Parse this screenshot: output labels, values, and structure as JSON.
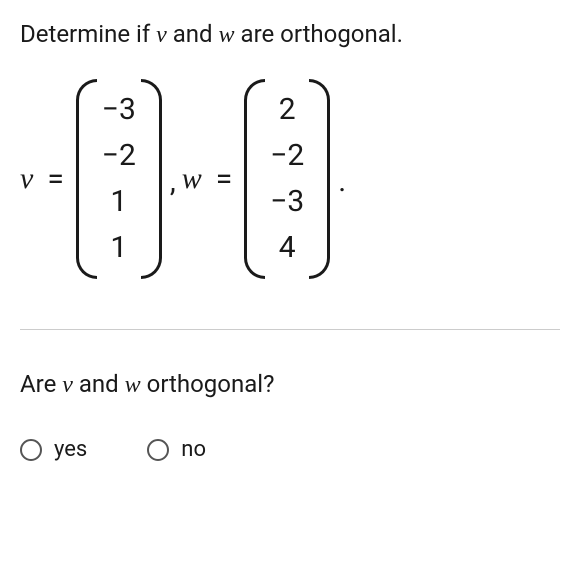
{
  "instruction": {
    "prefix": "Determine if ",
    "var1": "v",
    "mid": " and ",
    "var2": "w",
    "suffix": " are orthogonal."
  },
  "vectors": {
    "v": {
      "label": "v",
      "entries": [
        "−3",
        "−2",
        "1",
        "1"
      ]
    },
    "w": {
      "label": "w",
      "entries": [
        "2",
        "−2",
        "−3",
        "4"
      ]
    },
    "equals": "=",
    "comma": ",",
    "period": "."
  },
  "question": {
    "prefix": "Are ",
    "var1": "v",
    "mid": " and ",
    "var2": "w",
    "suffix": " orthogonal?"
  },
  "options": {
    "yes": "yes",
    "no": "no"
  },
  "colors": {
    "text": "#1a1a1a",
    "divider": "#cccccc",
    "radio_border": "#555555",
    "background": "#ffffff"
  },
  "typography": {
    "body_fontsize": 24,
    "vector_fontsize": 30,
    "option_fontsize": 22
  }
}
